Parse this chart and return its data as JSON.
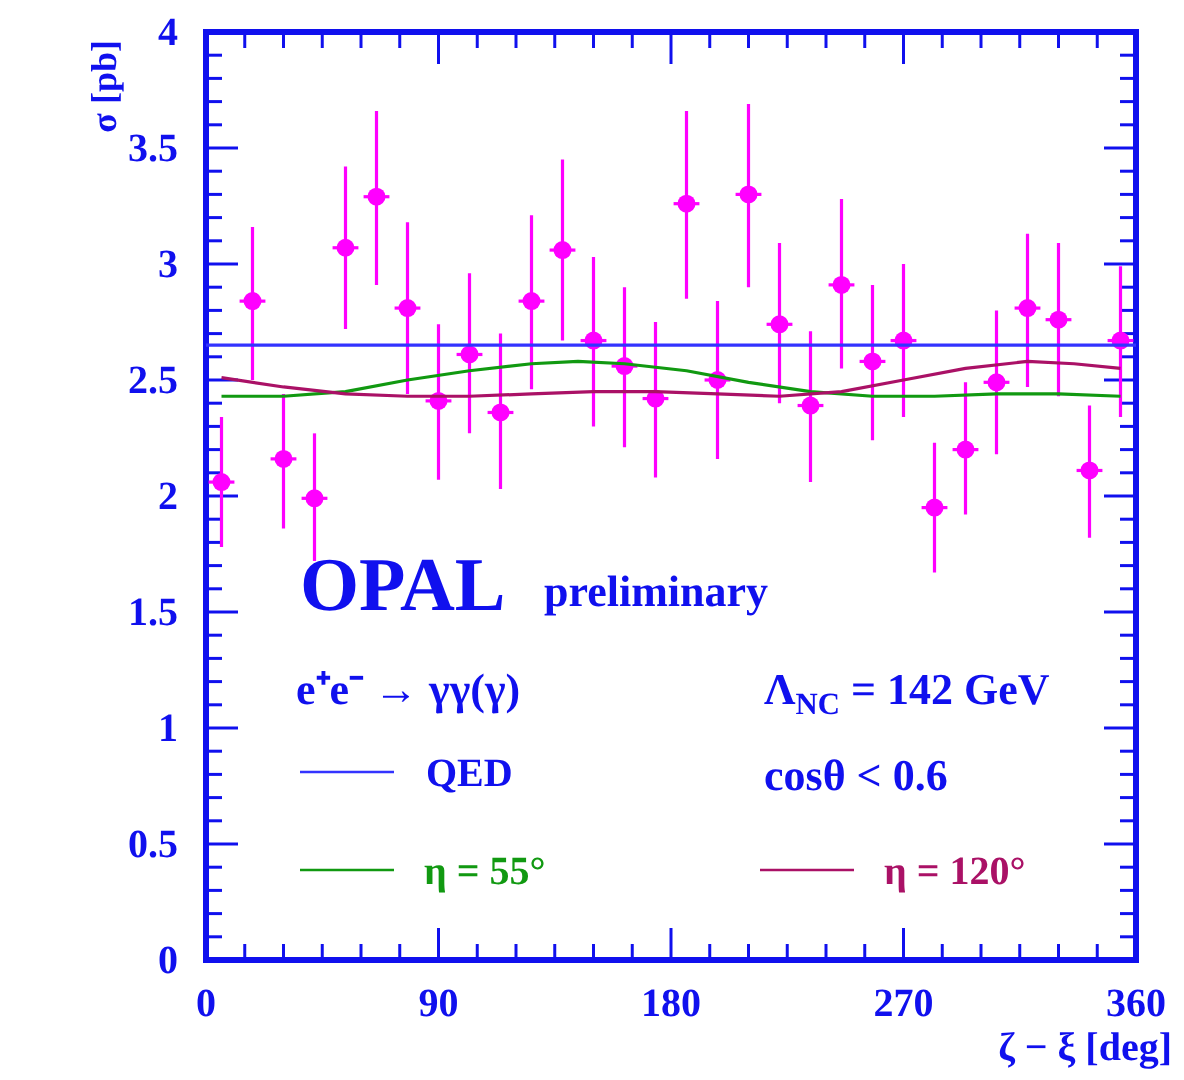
{
  "chart_data": {
    "type": "scatter",
    "xlabel": "ζ − ξ [deg]",
    "ylabel": "σ [pb]",
    "xlim": [
      0,
      360
    ],
    "ylim": [
      0,
      4
    ],
    "xticks": [
      0,
      {
        "value": 15,
        "label": null
      },
      {
        "value": 30,
        "label": null
      },
      {
        "value": 45,
        "label": null
      },
      {
        "value": 60,
        "label": null
      },
      {
        "value": 75,
        "label": null
      },
      90,
      {
        "value": 105,
        "label": null
      },
      {
        "value": 120,
        "label": null
      },
      {
        "value": 135,
        "label": null
      },
      {
        "value": 150,
        "label": null
      },
      {
        "value": 165,
        "label": null
      },
      180,
      {
        "value": 195,
        "label": null
      },
      {
        "value": 210,
        "label": null
      },
      {
        "value": 225,
        "label": null
      },
      {
        "value": 240,
        "label": null
      },
      {
        "value": 255,
        "label": null
      },
      270,
      {
        "value": 285,
        "label": null
      },
      {
        "value": 300,
        "label": null
      },
      {
        "value": 315,
        "label": null
      },
      {
        "value": 330,
        "label": null
      },
      {
        "value": 345,
        "label": null
      },
      360
    ],
    "yticks": [
      0,
      {
        "value": 0.1,
        "label": null
      },
      {
        "value": 0.2,
        "label": null
      },
      {
        "value": 0.3,
        "label": null
      },
      {
        "value": 0.4,
        "label": null
      },
      0.5,
      {
        "value": 0.6,
        "label": null
      },
      {
        "value": 0.7,
        "label": null
      },
      {
        "value": 0.8,
        "label": null
      },
      {
        "value": 0.9,
        "label": null
      },
      1,
      {
        "value": 1.1,
        "label": null
      },
      {
        "value": 1.2,
        "label": null
      },
      {
        "value": 1.3,
        "label": null
      },
      {
        "value": 1.4,
        "label": null
      },
      1.5,
      {
        "value": 1.6,
        "label": null
      },
      {
        "value": 1.7,
        "label": null
      },
      {
        "value": 1.8,
        "label": null
      },
      {
        "value": 1.9,
        "label": null
      },
      2,
      {
        "value": 2.1,
        "label": null
      },
      {
        "value": 2.2,
        "label": null
      },
      {
        "value": 2.3,
        "label": null
      },
      {
        "value": 2.4,
        "label": null
      },
      2.5,
      {
        "value": 2.6,
        "label": null
      },
      {
        "value": 2.7,
        "label": null
      },
      {
        "value": 2.8,
        "label": null
      },
      {
        "value": 2.9,
        "label": null
      },
      3,
      {
        "value": 3.1,
        "label": null
      },
      {
        "value": 3.2,
        "label": null
      },
      {
        "value": 3.3,
        "label": null
      },
      {
        "value": 3.4,
        "label": null
      },
      3.5,
      {
        "value": 3.6,
        "label": null
      },
      {
        "value": 3.7,
        "label": null
      },
      {
        "value": 3.8,
        "label": null
      },
      {
        "value": 3.9,
        "label": null
      },
      4
    ],
    "grid": false,
    "legend": "bottom",
    "annotations": [
      "OPAL",
      "preliminary",
      "e⁺e⁻ → γγ(γ)",
      "Λ$_{NC}$ = 142 GeV",
      "cosθ < 0.6"
    ],
    "series": [
      {
        "color": "#ff00ff",
        "marker": "circle",
        "x": [
          6,
          18,
          30,
          42,
          54,
          66,
          78,
          90,
          102,
          114,
          126,
          138,
          150,
          162,
          174,
          186,
          198,
          210,
          222,
          234,
          246,
          258,
          270,
          282,
          294,
          306,
          318,
          330,
          342,
          354
        ],
        "values": [
          2.06,
          2.84,
          2.16,
          1.99,
          3.07,
          3.29,
          2.81,
          2.41,
          2.61,
          2.36,
          2.84,
          3.06,
          2.67,
          2.56,
          2.42,
          3.26,
          2.5,
          3.3,
          2.74,
          2.39,
          2.91,
          2.58,
          2.67,
          1.95,
          2.2,
          2.49,
          2.81,
          2.76,
          2.11,
          2.67
        ],
        "errors": [
          [
            1.78,
            2.34
          ],
          [
            2.5,
            3.16
          ],
          [
            1.86,
            2.44
          ],
          [
            1.72,
            2.27
          ],
          [
            2.72,
            3.42
          ],
          [
            2.91,
            3.66
          ],
          [
            2.44,
            3.18
          ],
          [
            2.07,
            2.74
          ],
          [
            2.27,
            2.96
          ],
          [
            2.03,
            2.7
          ],
          [
            2.46,
            3.21
          ],
          [
            2.67,
            3.45
          ],
          [
            2.3,
            3.03
          ],
          [
            2.21,
            2.9
          ],
          [
            2.08,
            2.75
          ],
          [
            2.85,
            3.66
          ],
          [
            2.16,
            2.84
          ],
          [
            2.9,
            3.69
          ],
          [
            2.4,
            3.09
          ],
          [
            2.06,
            2.71
          ],
          [
            2.55,
            3.28
          ],
          [
            2.24,
            2.91
          ],
          [
            2.34,
            3
          ],
          [
            1.67,
            2.23
          ],
          [
            1.92,
            2.49
          ],
          [
            2.18,
            2.8
          ],
          [
            2.47,
            3.13
          ],
          [
            2.43,
            3.09
          ],
          [
            1.82,
            2.39
          ],
          [
            2.34,
            2.99
          ]
        ],
        "xerrors": [
          5,
          5,
          5,
          5,
          5,
          5,
          5,
          5,
          5,
          5,
          5,
          5,
          5,
          5,
          5,
          5,
          5,
          5,
          5,
          5,
          5,
          5,
          5,
          5,
          5,
          5,
          5,
          5,
          5,
          5
        ]
      },
      {
        "type": "line",
        "name": "QED",
        "color": "#3333ff",
        "marker": "none",
        "x": [
          0,
          360
        ],
        "values": [
          2.65,
          2.65
        ]
      },
      {
        "type": "line",
        "name": "η = 55°",
        "color": "#119911",
        "marker": "none",
        "x": [
          6,
          30,
          54,
          78,
          102,
          126,
          144,
          162,
          186,
          210,
          234,
          258,
          282,
          306,
          330,
          354
        ],
        "values": [
          2.43,
          2.43,
          2.45,
          2.5,
          2.54,
          2.57,
          2.58,
          2.57,
          2.54,
          2.49,
          2.45,
          2.43,
          2.43,
          2.44,
          2.44,
          2.43
        ]
      },
      {
        "type": "line",
        "name": "η = 120°",
        "color": "#aa1166",
        "marker": "none",
        "x": [
          6,
          30,
          54,
          78,
          102,
          126,
          150,
          174,
          198,
          222,
          246,
          270,
          294,
          318,
          336,
          354
        ],
        "values": [
          2.51,
          2.47,
          2.44,
          2.43,
          2.43,
          2.44,
          2.45,
          2.45,
          2.44,
          2.43,
          2.45,
          2.5,
          2.55,
          2.58,
          2.57,
          2.55
        ]
      }
    ]
  }
}
